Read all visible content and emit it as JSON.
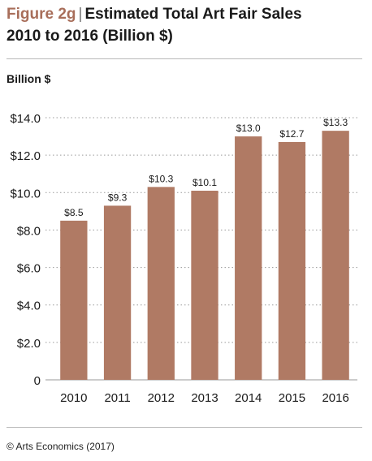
{
  "header": {
    "figure_label": "Figure 2g",
    "title_line1": "Estimated Total Art Fair Sales",
    "title_line2": "2010 to 2016 (Billion $)"
  },
  "unit_label": "Billion $",
  "footer": {
    "source": "© Arts Economics (2017)"
  },
  "colors": {
    "bar": "#b07a64",
    "figure_label": "#a86e5a",
    "grid": "#9a9a9a"
  },
  "chart_data": {
    "type": "bar",
    "categories": [
      "2010",
      "2011",
      "2012",
      "2013",
      "2014",
      "2015",
      "2016"
    ],
    "values": [
      8.5,
      9.3,
      10.3,
      10.1,
      13.0,
      12.7,
      13.3
    ],
    "data_labels": [
      "$8.5",
      "$9.3",
      "$10.3",
      "$10.1",
      "$13.0",
      "$12.7",
      "$13.3"
    ],
    "ylim": [
      0,
      14
    ],
    "yticks": [
      0,
      2,
      4,
      6,
      8,
      10,
      12,
      14
    ],
    "ytick_labels": [
      "0",
      "$2.0",
      "$4.0",
      "$6.0",
      "$8.0",
      "$10.0",
      "$12.0",
      "$14.0"
    ],
    "grid": true,
    "legend": "none"
  }
}
